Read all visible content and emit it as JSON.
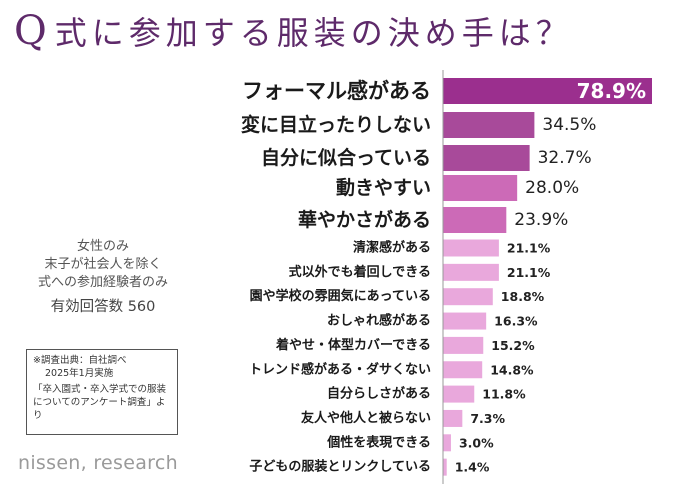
{
  "header": {
    "q_mark": "Q",
    "title_text": "式に参加する服装の決め手は？"
  },
  "info": {
    "line1": "女性のみ",
    "line2": "末子が社会人を除く",
    "line3": "式への参加経験者のみ",
    "count": "有効回答数 560"
  },
  "source": {
    "line1": "※調査出典：自社調べ",
    "line2": "2025年1月実施",
    "survey": "「卒入園式・卒入学式での服装についてのアンケート調査」より"
  },
  "brand": "nissen, research",
  "colors": {
    "title": "#5e2a6a",
    "tier1": "#9b2f8e",
    "tier2": "#a84a9a",
    "tier3": "#cc6ab7",
    "tier4": "#e9a8dc",
    "axis": "#999999"
  },
  "chart_data": {
    "type": "bar",
    "orientation": "horizontal",
    "title": "式に参加する服装の決め手は？",
    "unit": "%",
    "xlim": [
      0,
      80
    ],
    "categories": [
      "フォーマル感がある",
      "変に目立ったりしない",
      "自分に似合っている",
      "動きやすい",
      "華やかさがある",
      "清潔感がある",
      "式以外でも着回しできる",
      "園や学校の雰囲気にあっている",
      "おしゃれ感がある",
      "着やせ・体型カバーできる",
      "トレンド感がある・ダサくない",
      "自分らしさがある",
      "友人や他人と被らない",
      "個性を表現できる",
      "子どもの服装とリンクしている"
    ],
    "values": [
      78.9,
      34.5,
      32.7,
      28.0,
      23.9,
      21.1,
      21.1,
      18.8,
      16.3,
      15.2,
      14.8,
      11.8,
      7.3,
      3.0,
      1.4
    ],
    "value_labels": [
      "78.9%",
      "34.5%",
      "32.7%",
      "28.0%",
      "23.9%",
      "21.1%",
      "21.1%",
      "18.8%",
      "16.3%",
      "15.2%",
      "14.8%",
      "11.8%",
      "7.3%",
      "3.0%",
      "1.4%"
    ]
  }
}
